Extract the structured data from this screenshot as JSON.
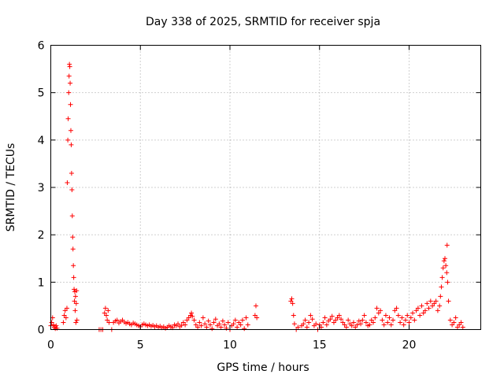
{
  "chart_data": {
    "type": "scatter",
    "title": "Day 338 of 2025, SRMTID for receiver spja",
    "xlabel": "GPS time / hours",
    "ylabel": "SRMTID / TECUs",
    "xlim": [
      0,
      24
    ],
    "ylim": [
      0,
      6
    ],
    "xticks": [
      0,
      5,
      10,
      15,
      20
    ],
    "yticks": [
      0,
      1,
      2,
      3,
      4,
      5,
      6
    ],
    "grid": true,
    "marker": "plus",
    "color": "#ff0000",
    "series": [
      {
        "name": "SRMTID",
        "points": [
          [
            0.0,
            0.08
          ],
          [
            0.05,
            0.15
          ],
          [
            0.1,
            0.25
          ],
          [
            0.15,
            0.1
          ],
          [
            0.2,
            0.05
          ],
          [
            0.25,
            0.02
          ],
          [
            0.3,
            0.08
          ],
          [
            0.35,
            0.03
          ],
          [
            0.7,
            0.15
          ],
          [
            0.75,
            0.3
          ],
          [
            0.8,
            0.4
          ],
          [
            0.85,
            0.25
          ],
          [
            0.9,
            0.45
          ],
          [
            0.92,
            3.1
          ],
          [
            0.95,
            4.0
          ],
          [
            0.97,
            4.45
          ],
          [
            1.0,
            5.0
          ],
          [
            1.02,
            5.35
          ],
          [
            1.04,
            5.6
          ],
          [
            1.06,
            5.55
          ],
          [
            1.08,
            5.2
          ],
          [
            1.1,
            4.75
          ],
          [
            1.12,
            4.2
          ],
          [
            1.14,
            3.9
          ],
          [
            1.16,
            3.3
          ],
          [
            1.18,
            2.95
          ],
          [
            1.2,
            2.4
          ],
          [
            1.22,
            1.95
          ],
          [
            1.24,
            1.7
          ],
          [
            1.26,
            1.35
          ],
          [
            1.28,
            1.1
          ],
          [
            1.3,
            0.85
          ],
          [
            1.32,
            0.6
          ],
          [
            1.34,
            0.8
          ],
          [
            1.36,
            0.4
          ],
          [
            1.38,
            0.7
          ],
          [
            1.4,
            0.15
          ],
          [
            1.42,
            0.55
          ],
          [
            1.44,
            0.82
          ],
          [
            1.46,
            0.2
          ],
          [
            2.7,
            0.0
          ],
          [
            2.8,
            0.0
          ],
          [
            2.9,
            0.0
          ],
          [
            3.0,
            0.35
          ],
          [
            3.05,
            0.45
          ],
          [
            3.1,
            0.3
          ],
          [
            3.15,
            0.2
          ],
          [
            3.2,
            0.4
          ],
          [
            3.25,
            0.15
          ],
          [
            3.4,
            0.0
          ],
          [
            3.5,
            0.15
          ],
          [
            3.6,
            0.18
          ],
          [
            3.7,
            0.2
          ],
          [
            3.8,
            0.14
          ],
          [
            3.9,
            0.17
          ],
          [
            4.0,
            0.2
          ],
          [
            4.1,
            0.16
          ],
          [
            4.2,
            0.13
          ],
          [
            4.3,
            0.15
          ],
          [
            4.4,
            0.12
          ],
          [
            4.5,
            0.1
          ],
          [
            4.6,
            0.14
          ],
          [
            4.7,
            0.12
          ],
          [
            4.8,
            0.1
          ],
          [
            4.9,
            0.08
          ],
          [
            5.0,
            0.06
          ],
          [
            5.1,
            0.1
          ],
          [
            5.2,
            0.12
          ],
          [
            5.3,
            0.1
          ],
          [
            5.4,
            0.08
          ],
          [
            5.5,
            0.1
          ],
          [
            5.6,
            0.07
          ],
          [
            5.7,
            0.09
          ],
          [
            5.8,
            0.06
          ],
          [
            5.9,
            0.08
          ],
          [
            6.0,
            0.05
          ],
          [
            6.1,
            0.07
          ],
          [
            6.2,
            0.04
          ],
          [
            6.3,
            0.06
          ],
          [
            6.4,
            0.03
          ],
          [
            6.5,
            0.05
          ],
          [
            6.6,
            0.08
          ],
          [
            6.7,
            0.06
          ],
          [
            6.8,
            0.04
          ],
          [
            6.9,
            0.1
          ],
          [
            7.0,
            0.08
          ],
          [
            7.1,
            0.12
          ],
          [
            7.2,
            0.06
          ],
          [
            7.3,
            0.09
          ],
          [
            7.4,
            0.15
          ],
          [
            7.5,
            0.1
          ],
          [
            7.6,
            0.2
          ],
          [
            7.7,
            0.25
          ],
          [
            7.8,
            0.3
          ],
          [
            7.85,
            0.35
          ],
          [
            7.9,
            0.28
          ],
          [
            8.0,
            0.2
          ],
          [
            8.1,
            0.1
          ],
          [
            8.2,
            0.05
          ],
          [
            8.3,
            0.15
          ],
          [
            8.4,
            0.08
          ],
          [
            8.5,
            0.25
          ],
          [
            8.6,
            0.12
          ],
          [
            8.7,
            0.05
          ],
          [
            8.8,
            0.18
          ],
          [
            8.9,
            0.1
          ],
          [
            9.0,
            0.02
          ],
          [
            9.1,
            0.15
          ],
          [
            9.2,
            0.22
          ],
          [
            9.3,
            0.08
          ],
          [
            9.4,
            0.12
          ],
          [
            9.5,
            0.05
          ],
          [
            9.6,
            0.18
          ],
          [
            9.7,
            0.1
          ],
          [
            9.8,
            0.03
          ],
          [
            9.9,
            0.15
          ],
          [
            10.0,
            0.0
          ],
          [
            10.1,
            0.08
          ],
          [
            10.2,
            0.12
          ],
          [
            10.3,
            0.2
          ],
          [
            10.4,
            0.05
          ],
          [
            10.5,
            0.15
          ],
          [
            10.6,
            0.1
          ],
          [
            10.7,
            0.2
          ],
          [
            10.8,
            0.02
          ],
          [
            10.9,
            0.25
          ],
          [
            11.0,
            0.1
          ],
          [
            11.4,
            0.3
          ],
          [
            11.45,
            0.5
          ],
          [
            11.5,
            0.25
          ],
          [
            13.4,
            0.6
          ],
          [
            13.45,
            0.65
          ],
          [
            13.5,
            0.55
          ],
          [
            13.55,
            0.3
          ],
          [
            13.6,
            0.12
          ],
          [
            13.7,
            0.0
          ],
          [
            13.8,
            0.05
          ],
          [
            14.0,
            0.08
          ],
          [
            14.1,
            0.12
          ],
          [
            14.2,
            0.2
          ],
          [
            14.3,
            0.05
          ],
          [
            14.4,
            0.15
          ],
          [
            14.5,
            0.3
          ],
          [
            14.6,
            0.22
          ],
          [
            14.7,
            0.08
          ],
          [
            14.8,
            0.12
          ],
          [
            14.9,
            0.0
          ],
          [
            15.0,
            0.1
          ],
          [
            15.1,
            0.05
          ],
          [
            15.2,
            0.15
          ],
          [
            15.3,
            0.25
          ],
          [
            15.4,
            0.1
          ],
          [
            15.5,
            0.18
          ],
          [
            15.6,
            0.22
          ],
          [
            15.7,
            0.28
          ],
          [
            15.8,
            0.15
          ],
          [
            15.9,
            0.2
          ],
          [
            16.0,
            0.25
          ],
          [
            16.1,
            0.3
          ],
          [
            16.2,
            0.22
          ],
          [
            16.3,
            0.15
          ],
          [
            16.4,
            0.1
          ],
          [
            16.5,
            0.05
          ],
          [
            16.6,
            0.2
          ],
          [
            16.7,
            0.12
          ],
          [
            16.8,
            0.08
          ],
          [
            16.9,
            0.15
          ],
          [
            17.0,
            0.05
          ],
          [
            17.1,
            0.1
          ],
          [
            17.2,
            0.18
          ],
          [
            17.3,
            0.12
          ],
          [
            17.4,
            0.2
          ],
          [
            17.5,
            0.3
          ],
          [
            17.6,
            0.15
          ],
          [
            17.7,
            0.08
          ],
          [
            17.8,
            0.1
          ],
          [
            17.9,
            0.2
          ],
          [
            18.0,
            0.15
          ],
          [
            18.1,
            0.25
          ],
          [
            18.2,
            0.45
          ],
          [
            18.3,
            0.35
          ],
          [
            18.4,
            0.4
          ],
          [
            18.5,
            0.2
          ],
          [
            18.6,
            0.1
          ],
          [
            18.7,
            0.3
          ],
          [
            18.8,
            0.15
          ],
          [
            18.9,
            0.25
          ],
          [
            19.0,
            0.1
          ],
          [
            19.1,
            0.2
          ],
          [
            19.2,
            0.4
          ],
          [
            19.3,
            0.45
          ],
          [
            19.4,
            0.3
          ],
          [
            19.5,
            0.15
          ],
          [
            19.6,
            0.25
          ],
          [
            19.7,
            0.1
          ],
          [
            19.8,
            0.2
          ],
          [
            19.9,
            0.3
          ],
          [
            20.0,
            0.15
          ],
          [
            20.1,
            0.25
          ],
          [
            20.2,
            0.35
          ],
          [
            20.3,
            0.2
          ],
          [
            20.4,
            0.4
          ],
          [
            20.5,
            0.45
          ],
          [
            20.6,
            0.3
          ],
          [
            20.7,
            0.5
          ],
          [
            20.8,
            0.35
          ],
          [
            20.9,
            0.4
          ],
          [
            21.0,
            0.55
          ],
          [
            21.1,
            0.45
          ],
          [
            21.2,
            0.6
          ],
          [
            21.3,
            0.5
          ],
          [
            21.4,
            0.55
          ],
          [
            21.5,
            0.6
          ],
          [
            21.6,
            0.4
          ],
          [
            21.7,
            0.5
          ],
          [
            21.75,
            0.7
          ],
          [
            21.8,
            0.9
          ],
          [
            21.85,
            1.1
          ],
          [
            21.9,
            1.3
          ],
          [
            21.95,
            1.45
          ],
          [
            22.0,
            1.5
          ],
          [
            22.05,
            1.35
          ],
          [
            22.1,
            1.2
          ],
          [
            22.12,
            1.78
          ],
          [
            22.15,
            1.0
          ],
          [
            22.2,
            0.6
          ],
          [
            22.3,
            0.2
          ],
          [
            22.4,
            0.1
          ],
          [
            22.5,
            0.15
          ],
          [
            22.6,
            0.25
          ],
          [
            22.7,
            0.05
          ],
          [
            22.8,
            0.1
          ],
          [
            22.9,
            0.15
          ],
          [
            23.0,
            0.05
          ]
        ]
      }
    ]
  }
}
